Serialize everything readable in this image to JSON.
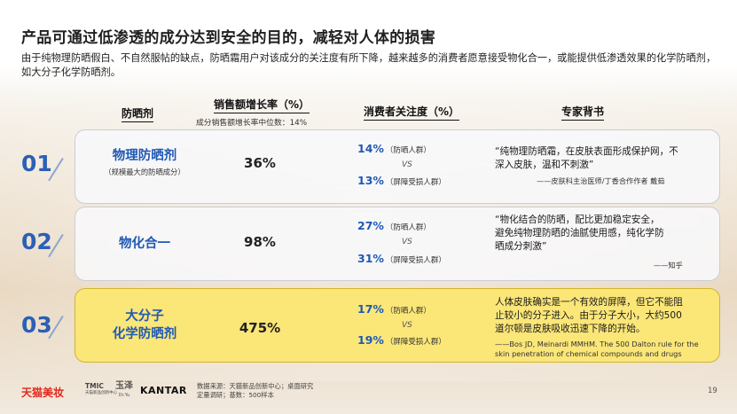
{
  "title": "产品可通过低渗透的成分达到安全的目的，减轻对人体的损害",
  "subtitle": "由于纯物理防晒假白、不自然服帖的缺点，防晒霜用户对该成分的关注度有所下降，越来越多的消费者愿意接受物化合一，或能提供低渗透效果的化学防晒剂，如大分子化学防晒剂。",
  "headers": {
    "ingredient": "防晒剂",
    "growth": "销售额增长率（%）",
    "growth_note": "成分销售额增长率中位数：14%",
    "attention": "消费者关注度（%）",
    "expert": "专家背书"
  },
  "rows": [
    {
      "index": "01",
      "name_lines": [
        "物理防晒剂"
      ],
      "note": "（规模最大的防晒成分）",
      "growth": "36%",
      "att1_pct": "14%",
      "att1_label": "（防晒人群）",
      "vs": "VS",
      "att2_pct": "13%",
      "att2_label": "（屏障受损人群）",
      "quote_lines": [
        "“纯物理防晒霜，在皮肤表面形成保护网，不",
        "深入皮肤，温和不刺激”"
      ],
      "source_lines": [
        "——皮肤科主治医师/丁香合作作者 戴茹"
      ]
    },
    {
      "index": "02",
      "name_lines": [
        "物化合一"
      ],
      "note": "",
      "growth": "98%",
      "att1_pct": "27%",
      "att1_label": "（防晒人群）",
      "vs": "VS",
      "att2_pct": "31%",
      "att2_label": "（屏障受损人群）",
      "quote_lines": [
        "“物化结合的防晒，配比更加稳定安全，",
        "避免纯物理防晒的油腻使用感，纯化学防",
        "晒成分刺激”"
      ],
      "source_lines": [
        "——知乎"
      ]
    },
    {
      "index": "03",
      "name_lines": [
        "大分子",
        "化学防晒剂"
      ],
      "note": "",
      "growth": "475%",
      "att1_pct": "17%",
      "att1_label": "（防晒人群）",
      "vs": "VS",
      "att2_pct": "19%",
      "att2_label": "（屏障受损人群）",
      "quote_lines": [
        "人体皮肤确实是一个有效的屏障，但它不能阻",
        "止较小的分子进入。由于分子大小，大约500",
        "道尔顿是皮肤吸收迅速下降的开始。"
      ],
      "source_lines": [
        "——Bos JD, Meinardi MMHM. The 500 Dalton rule for the",
        "skin penetration of chemical compounds and drugs"
      ]
    }
  ],
  "footer": {
    "logo_tmall": "天猫美妆",
    "logo_tmic": "TMIC",
    "logo_tmic_sub": "天猫新品创新中心",
    "logo_yuze": "玉泽",
    "logo_yuze_sub": "Dr.Yu",
    "logo_kantar": "KANTAR",
    "source_line1": "数据来源：天猫新品创新中心；桌面研究",
    "source_line2": "定量调研；基数：500样本",
    "page": "19"
  },
  "colors": {
    "accent_blue": "#2c5fb6",
    "highlight_yellow": "#fbe678",
    "tmall_red": "#e1251b"
  }
}
